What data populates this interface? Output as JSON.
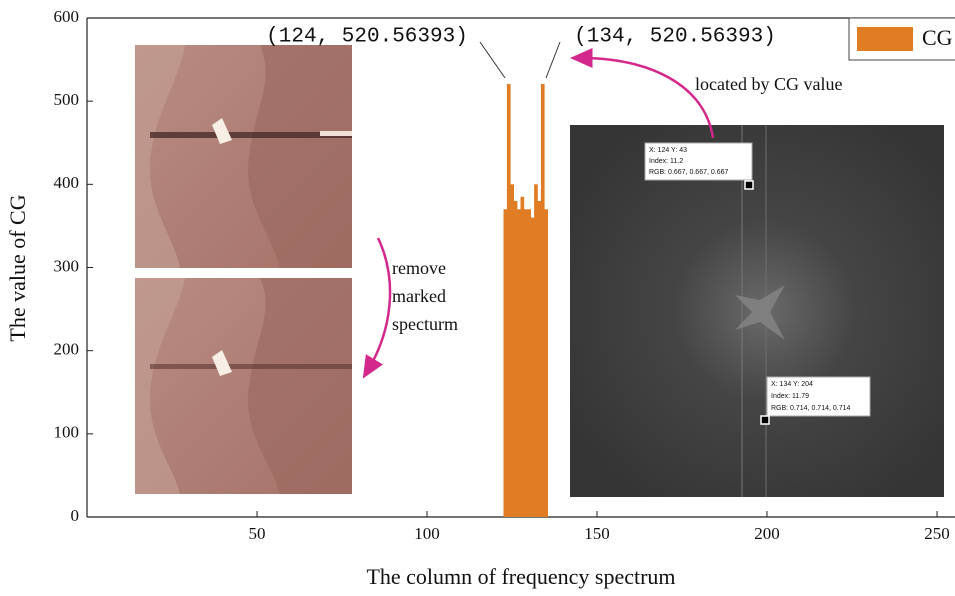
{
  "chart_data": {
    "type": "bar",
    "x_label": "The column of frequency spectrum",
    "y_label": "The value of CG",
    "x": [
      123,
      124,
      125,
      126,
      127,
      128,
      129,
      130,
      131,
      132,
      133,
      134,
      135
    ],
    "series": [
      {
        "name": "CG",
        "color": "#e07c24",
        "values": [
          370,
          520.56393,
          400,
          380,
          370,
          385,
          370,
          370,
          360,
          400,
          380,
          520.56393,
          370
        ]
      }
    ],
    "xlim": [
      0,
      256
    ],
    "ylim": [
      0,
      600
    ],
    "xticks": [
      50,
      100,
      150,
      200,
      250
    ],
    "yticks": [
      0,
      100,
      200,
      300,
      400,
      500,
      600
    ],
    "legend": "upper right",
    "annotations": [
      "(124, 520.56393)",
      "(134, 520.56393)",
      "located by CG value",
      "remove",
      "marked",
      "specturm"
    ],
    "cursor_labels": [
      "X: 124 Y: 43",
      "Index: 11.2",
      "RGB: 0.667, 0.667, 0.667",
      "X: 134 Y: 204",
      "Index: 11.79",
      "RGB: 0.714, 0.714, 0.714"
    ]
  }
}
